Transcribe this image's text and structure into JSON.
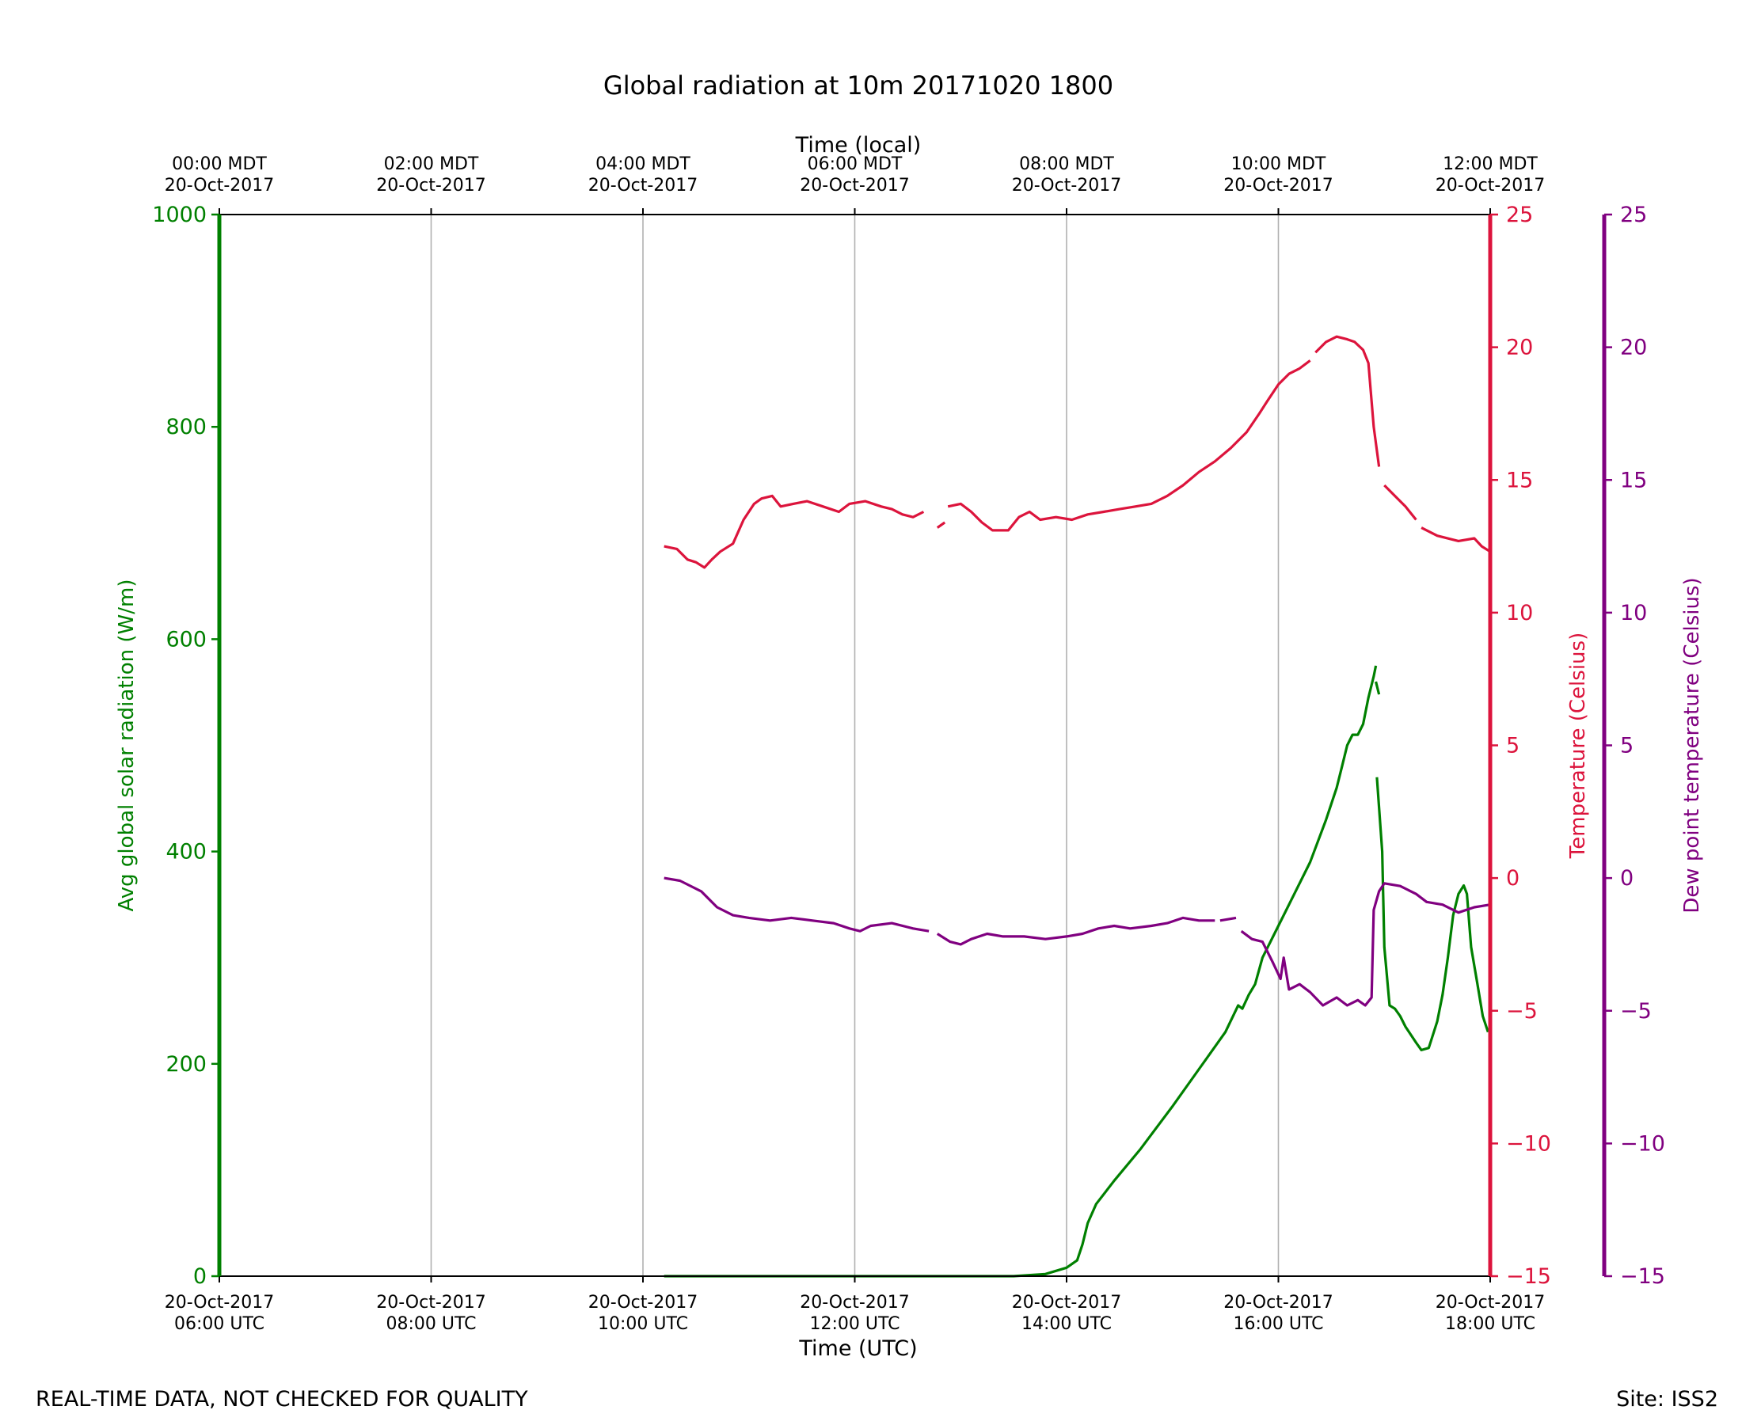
{
  "chart_data": {
    "type": "line",
    "title": "Global radiation at 10m 20171020 1800",
    "xlabel": "Time (UTC)",
    "xlabel_top": "Time (local)",
    "x_unit": "hours UTC on 20-Oct-2017",
    "xlim": [
      6,
      18
    ],
    "grid": "vertical",
    "x_ticks_bottom": [
      {
        "x": 6,
        "date": "20-Oct-2017",
        "time": "06:00 UTC"
      },
      {
        "x": 8,
        "date": "20-Oct-2017",
        "time": "08:00 UTC"
      },
      {
        "x": 10,
        "date": "20-Oct-2017",
        "time": "10:00 UTC"
      },
      {
        "x": 12,
        "date": "20-Oct-2017",
        "time": "12:00 UTC"
      },
      {
        "x": 14,
        "date": "20-Oct-2017",
        "time": "14:00 UTC"
      },
      {
        "x": 16,
        "date": "20-Oct-2017",
        "time": "16:00 UTC"
      },
      {
        "x": 18,
        "date": "20-Oct-2017",
        "time": "18:00 UTC"
      }
    ],
    "x_ticks_top": [
      {
        "x": 6,
        "time": "00:00 MDT",
        "date": "20-Oct-2017"
      },
      {
        "x": 8,
        "time": "02:00 MDT",
        "date": "20-Oct-2017"
      },
      {
        "x": 10,
        "time": "04:00 MDT",
        "date": "20-Oct-2017"
      },
      {
        "x": 12,
        "time": "06:00 MDT",
        "date": "20-Oct-2017"
      },
      {
        "x": 14,
        "time": "08:00 MDT",
        "date": "20-Oct-2017"
      },
      {
        "x": 16,
        "time": "10:00 MDT",
        "date": "20-Oct-2017"
      },
      {
        "x": 18,
        "time": "12:00 MDT",
        "date": "20-Oct-2017"
      }
    ],
    "axes": {
      "radiation": {
        "label": "Avg global solar radiation (W/m)",
        "color": "#008000",
        "ylim": [
          0,
          1000
        ],
        "ticks": [
          0,
          200,
          400,
          600,
          800,
          1000
        ],
        "tick_labels": [
          "0",
          "200",
          "400",
          "600",
          "800",
          "1000"
        ]
      },
      "temperature": {
        "label": "Temperature (Celsius)",
        "color": "#dc143c",
        "ylim": [
          -15,
          25
        ],
        "ticks": [
          -15,
          -10,
          -5,
          0,
          5,
          10,
          15,
          20,
          25
        ],
        "tick_labels": [
          "−15",
          "−10",
          "−5",
          "0",
          "5",
          "10",
          "15",
          "20",
          "25"
        ]
      },
      "dewpoint": {
        "label": "Dew point temperature (Celsius)",
        "color": "#800080",
        "ylim": [
          -15,
          25
        ],
        "ticks": [
          -15,
          -10,
          -5,
          0,
          5,
          10,
          15,
          20,
          25
        ],
        "tick_labels": [
          "−15",
          "−10",
          "−5",
          "0",
          "5",
          "10",
          "15",
          "20",
          "25"
        ]
      }
    },
    "series": [
      {
        "name": "Avg global solar radiation",
        "axis": "radiation",
        "color": "#008000",
        "segments": [
          [
            [
              10.2,
              0
            ],
            [
              11,
              0
            ],
            [
              12,
              0
            ],
            [
              13,
              0
            ],
            [
              13.5,
              0
            ],
            [
              13.8,
              2
            ],
            [
              14.0,
              8
            ],
            [
              14.1,
              15
            ],
            [
              14.15,
              30
            ],
            [
              14.2,
              50
            ],
            [
              14.28,
              68
            ],
            [
              14.45,
              90
            ],
            [
              14.7,
              120
            ],
            [
              15.0,
              160
            ],
            [
              15.25,
              195
            ],
            [
              15.5,
              230
            ],
            [
              15.62,
              255
            ],
            [
              15.66,
              252
            ],
            [
              15.72,
              265
            ],
            [
              15.78,
              275
            ],
            [
              15.85,
              300
            ],
            [
              16.0,
              330
            ],
            [
              16.15,
              360
            ],
            [
              16.3,
              390
            ],
            [
              16.45,
              430
            ],
            [
              16.55,
              460
            ],
            [
              16.6,
              480
            ],
            [
              16.65,
              500
            ],
            [
              16.7,
              510
            ],
            [
              16.75,
              510
            ],
            [
              16.8,
              520
            ],
            [
              16.85,
              545
            ],
            [
              16.9,
              565
            ],
            [
              16.92,
              575
            ]
          ],
          [
            [
              16.92,
              560
            ],
            [
              16.95,
              548
            ]
          ],
          [
            [
              16.93,
              470
            ],
            [
              16.98,
              400
            ],
            [
              17.0,
              310
            ],
            [
              17.05,
              255
            ],
            [
              17.1,
              252
            ],
            [
              17.15,
              245
            ],
            [
              17.2,
              235
            ],
            [
              17.3,
              220
            ],
            [
              17.35,
              213
            ],
            [
              17.42,
              215
            ],
            [
              17.5,
              240
            ],
            [
              17.55,
              265
            ],
            [
              17.6,
              300
            ],
            [
              17.65,
              340
            ],
            [
              17.7,
              360
            ],
            [
              17.75,
              368
            ],
            [
              17.78,
              360
            ],
            [
              17.82,
              310
            ],
            [
              17.88,
              275
            ],
            [
              17.93,
              245
            ],
            [
              17.98,
              230
            ]
          ]
        ]
      },
      {
        "name": "Temperature",
        "axis": "temperature",
        "color": "#dc143c",
        "segments": [
          [
            [
              10.2,
              12.5
            ],
            [
              10.32,
              12.4
            ],
            [
              10.42,
              12.0
            ],
            [
              10.5,
              11.9
            ],
            [
              10.58,
              11.7
            ],
            [
              10.65,
              12.0
            ],
            [
              10.73,
              12.3
            ],
            [
              10.85,
              12.6
            ],
            [
              10.95,
              13.5
            ],
            [
              11.05,
              14.1
            ],
            [
              11.12,
              14.3
            ],
            [
              11.22,
              14.4
            ],
            [
              11.3,
              14.0
            ],
            [
              11.42,
              14.1
            ],
            [
              11.55,
              14.2
            ],
            [
              11.7,
              14.0
            ],
            [
              11.85,
              13.8
            ],
            [
              11.95,
              14.1
            ],
            [
              12.1,
              14.2
            ],
            [
              12.25,
              14.0
            ],
            [
              12.35,
              13.9
            ],
            [
              12.45,
              13.7
            ],
            [
              12.55,
              13.6
            ],
            [
              12.65,
              13.8
            ]
          ],
          [
            [
              12.78,
              13.2
            ],
            [
              12.85,
              13.4
            ]
          ],
          [
            [
              12.88,
              14.0
            ],
            [
              13.0,
              14.1
            ],
            [
              13.1,
              13.8
            ],
            [
              13.2,
              13.4
            ],
            [
              13.3,
              13.1
            ],
            [
              13.45,
              13.1
            ],
            [
              13.55,
              13.6
            ],
            [
              13.65,
              13.8
            ],
            [
              13.75,
              13.5
            ],
            [
              13.9,
              13.6
            ],
            [
              14.05,
              13.5
            ],
            [
              14.2,
              13.7
            ],
            [
              14.35,
              13.8
            ],
            [
              14.5,
              13.9
            ],
            [
              14.65,
              14.0
            ],
            [
              14.8,
              14.1
            ],
            [
              14.95,
              14.4
            ],
            [
              15.1,
              14.8
            ],
            [
              15.25,
              15.3
            ],
            [
              15.4,
              15.7
            ],
            [
              15.55,
              16.2
            ],
            [
              15.7,
              16.8
            ],
            [
              15.82,
              17.5
            ],
            [
              15.9,
              18.0
            ],
            [
              16.0,
              18.6
            ],
            [
              16.1,
              19.0
            ],
            [
              16.2,
              19.2
            ],
            [
              16.3,
              19.5
            ]
          ],
          [
            [
              16.35,
              19.8
            ],
            [
              16.45,
              20.2
            ],
            [
              16.55,
              20.4
            ],
            [
              16.65,
              20.3
            ],
            [
              16.72,
              20.2
            ],
            [
              16.8,
              19.9
            ],
            [
              16.85,
              19.4
            ],
            [
              16.9,
              17.0
            ],
            [
              16.95,
              15.5
            ]
          ],
          [
            [
              17.0,
              14.8
            ],
            [
              17.1,
              14.4
            ],
            [
              17.2,
              14.0
            ],
            [
              17.3,
              13.5
            ]
          ],
          [
            [
              17.35,
              13.2
            ],
            [
              17.5,
              12.9
            ],
            [
              17.7,
              12.7
            ],
            [
              17.85,
              12.8
            ],
            [
              17.92,
              12.5
            ],
            [
              18.0,
              12.3
            ]
          ]
        ]
      },
      {
        "name": "Dew point temperature",
        "axis": "dewpoint",
        "color": "#800080",
        "segments": [
          [
            [
              10.2,
              0.0
            ],
            [
              10.35,
              -0.1
            ],
            [
              10.55,
              -0.5
            ],
            [
              10.7,
              -1.1
            ],
            [
              10.85,
              -1.4
            ],
            [
              11.0,
              -1.5
            ],
            [
              11.2,
              -1.6
            ],
            [
              11.4,
              -1.5
            ],
            [
              11.6,
              -1.6
            ],
            [
              11.8,
              -1.7
            ],
            [
              11.95,
              -1.9
            ],
            [
              12.05,
              -2.0
            ],
            [
              12.15,
              -1.8
            ],
            [
              12.35,
              -1.7
            ],
            [
              12.55,
              -1.9
            ],
            [
              12.7,
              -2.0
            ]
          ],
          [
            [
              12.78,
              -2.1
            ],
            [
              12.9,
              -2.4
            ],
            [
              13.0,
              -2.5
            ],
            [
              13.1,
              -2.3
            ],
            [
              13.25,
              -2.1
            ],
            [
              13.4,
              -2.2
            ],
            [
              13.6,
              -2.2
            ],
            [
              13.8,
              -2.3
            ],
            [
              14.0,
              -2.2
            ],
            [
              14.15,
              -2.1
            ],
            [
              14.3,
              -1.9
            ],
            [
              14.45,
              -1.8
            ],
            [
              14.6,
              -1.9
            ],
            [
              14.8,
              -1.8
            ],
            [
              14.95,
              -1.7
            ],
            [
              15.1,
              -1.5
            ],
            [
              15.25,
              -1.6
            ],
            [
              15.4,
              -1.6
            ]
          ],
          [
            [
              15.45,
              -1.6
            ],
            [
              15.6,
              -1.5
            ]
          ],
          [
            [
              15.65,
              -2.0
            ],
            [
              15.75,
              -2.3
            ],
            [
              15.85,
              -2.4
            ],
            [
              15.95,
              -3.2
            ],
            [
              16.02,
              -3.8
            ],
            [
              16.05,
              -3.0
            ],
            [
              16.1,
              -4.2
            ],
            [
              16.2,
              -4.0
            ],
            [
              16.3,
              -4.3
            ],
            [
              16.42,
              -4.8
            ],
            [
              16.55,
              -4.5
            ],
            [
              16.65,
              -4.8
            ],
            [
              16.75,
              -4.6
            ],
            [
              16.82,
              -4.8
            ],
            [
              16.88,
              -4.5
            ],
            [
              16.9,
              -1.2
            ],
            [
              16.95,
              -0.5
            ],
            [
              17.0,
              -0.2
            ],
            [
              17.15,
              -0.3
            ],
            [
              17.3,
              -0.6
            ],
            [
              17.4,
              -0.9
            ],
            [
              17.55,
              -1.0
            ],
            [
              17.7,
              -1.3
            ],
            [
              17.85,
              -1.1
            ],
            [
              18.0,
              -1.0
            ]
          ]
        ]
      }
    ]
  },
  "footer": {
    "note": "REAL-TIME DATA, NOT CHECKED FOR QUALITY",
    "site": "Site: ISS2"
  }
}
